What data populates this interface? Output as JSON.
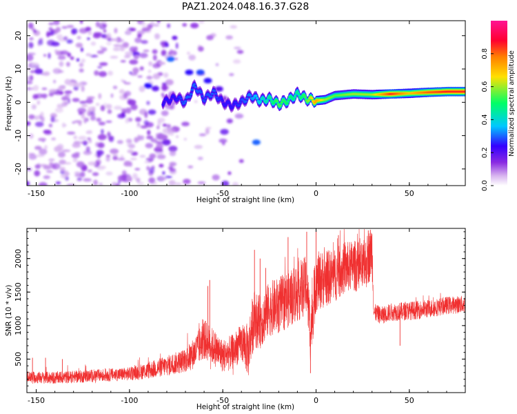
{
  "chart_data": [
    {
      "type": "heatmap",
      "title": "PAZ1.2024.048.16.37.G28",
      "xlabel": "Height of straight line (km)",
      "ylabel": "Frequency (Hz)",
      "xlim": [
        -155,
        80
      ],
      "ylim": [
        -25,
        24.5
      ],
      "xticks": [
        -150,
        -100,
        -50,
        0,
        50
      ],
      "yticks": [
        -20,
        -10,
        0,
        10,
        20
      ],
      "colorbar": {
        "label": "Normalized spectral amplitude",
        "range": [
          0,
          1
        ],
        "ticks": [
          "0.0",
          "0.2",
          "0.4",
          "0.6",
          "0.8"
        ],
        "colormap": [
          "#ffffff",
          "#d8b4ef",
          "#8a2be2",
          "#3300ff",
          "#00c8ff",
          "#00ff66",
          "#ffe000",
          "#ff8000",
          "#ff0030",
          "#ff1493"
        ]
      },
      "ridge": {
        "x": [
          -82,
          -75,
          -70,
          -65,
          -60,
          -55,
          -50,
          -45,
          -40,
          -35,
          -30,
          -25,
          -20,
          -15,
          -10,
          -5,
          0,
          5,
          10,
          20,
          30,
          40,
          50,
          60,
          70,
          80
        ],
        "y": [
          0,
          1.5,
          0,
          5,
          1,
          3,
          0,
          -1,
          0,
          2,
          0.5,
          1,
          -0.5,
          0.5,
          2.5,
          1,
          0.5,
          0.8,
          2,
          2.5,
          2.3,
          2.5,
          2.7,
          3,
          3.2,
          3.2
        ],
        "amplitude": [
          0.25,
          0.25,
          0.3,
          0.3,
          0.28,
          0.3,
          0.25,
          0.25,
          0.28,
          0.32,
          0.4,
          0.45,
          0.55,
          0.5,
          0.45,
          0.55,
          0.75,
          0.6,
          0.55,
          0.6,
          0.6,
          0.85,
          0.7,
          0.8,
          0.85,
          0.85
        ]
      },
      "blobs": [
        {
          "x": -62,
          "y": 9,
          "a": 0.28
        },
        {
          "x": -58,
          "y": 6.5,
          "a": 0.25
        },
        {
          "x": -78,
          "y": 13,
          "a": 0.3
        },
        {
          "x": -32,
          "y": -12,
          "a": 0.3
        },
        {
          "x": -90,
          "y": 5,
          "a": 0.25
        },
        {
          "x": -68,
          "y": 9,
          "a": 0.25
        },
        {
          "x": -56,
          "y": 2,
          "a": 0.22
        },
        {
          "x": -52,
          "y": 4,
          "a": 0.2
        }
      ],
      "noise_region": {
        "x": [
          -155,
          -40
        ],
        "y": [
          -25,
          24.5
        ],
        "dense_x": [
          -155,
          -75
        ]
      }
    },
    {
      "type": "line",
      "xlabel": "Height of straight line (km)",
      "ylabel": "SNR (10 * v/v)",
      "xlim": [
        -155,
        80
      ],
      "ylim": [
        0,
        2450
      ],
      "xticks": [
        -150,
        -100,
        -50,
        0,
        50
      ],
      "yticks": [
        500,
        1000,
        1500,
        2000
      ],
      "color": "#f03030",
      "envelope": {
        "x": [
          -155,
          -140,
          -120,
          -100,
          -90,
          -80,
          -70,
          -65,
          -60,
          -55,
          -50,
          -45,
          -40,
          -36,
          -35,
          -33,
          -30,
          -25,
          -20,
          -15,
          -10,
          -5,
          -3,
          0,
          5,
          10,
          15,
          20,
          25,
          28,
          30,
          31,
          35,
          40,
          50,
          60,
          70,
          80
        ],
        "y": [
          230,
          220,
          250,
          280,
          330,
          400,
          480,
          600,
          800,
          680,
          550,
          600,
          750,
          620,
          900,
          1100,
          1050,
          1250,
          1300,
          1400,
          1500,
          1600,
          900,
          1650,
          1700,
          1750,
          1850,
          1900,
          1850,
          2000,
          2150,
          1200,
          1150,
          1200,
          1220,
          1250,
          1300,
          1320
        ]
      },
      "spread": {
        "x": [
          -155,
          -100,
          -70,
          -60,
          -50,
          -40,
          -35,
          -30,
          -20,
          -10,
          0,
          10,
          20,
          30,
          31,
          50,
          80
        ],
        "y": [
          90,
          100,
          180,
          300,
          250,
          280,
          450,
          400,
          420,
          450,
          450,
          400,
          380,
          400,
          130,
          140,
          130
        ]
      },
      "spikes": [
        {
          "x": -152,
          "y": 520
        },
        {
          "x": -145,
          "y": 520
        },
        {
          "x": -136,
          "y": 500
        },
        {
          "x": -58,
          "y": 1590
        },
        {
          "x": -57,
          "y": 1680
        },
        {
          "x": -33,
          "y": 2130
        },
        {
          "x": -30,
          "y": 2000
        },
        {
          "x": -27,
          "y": 1860
        },
        {
          "x": -15,
          "y": 2320
        },
        {
          "x": -5,
          "y": 2400
        },
        {
          "x": -3,
          "y": 290
        },
        {
          "x": 0,
          "y": 2420
        },
        {
          "x": 12,
          "y": 2350
        },
        {
          "x": 28,
          "y": 2420
        },
        {
          "x": 45,
          "y": 700
        }
      ]
    }
  ]
}
